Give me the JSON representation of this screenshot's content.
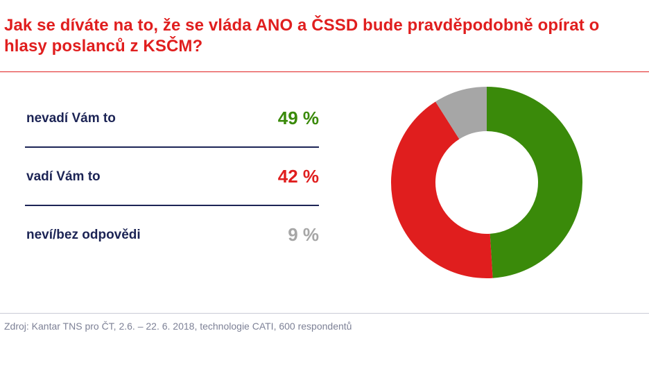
{
  "title": "Jak se díváte na to, že se vláda ANO a ČSSD bude pravděpodobně opírat o hlasy poslanců z KSČM?",
  "source": "Zdroj: Kantar TNS pro ČT, 2.6. – 22. 6. 2018, technologie CATI, 600 respondentů",
  "rows": [
    {
      "label": "nevadí Vám to",
      "value_text": "49 %"
    },
    {
      "label": "vadí Vám to",
      "value_text": "42 %"
    },
    {
      "label": "neví/bez odpovědi",
      "value_text": "9 %"
    }
  ],
  "colors": {
    "green": "#3a8a0a",
    "red": "#e01e1e",
    "gray": "#a6a6a6",
    "navy": "#1c2455"
  },
  "chart_data": {
    "type": "pie",
    "donut": true,
    "categories": [
      "nevadí Vám to",
      "vadí Vám to",
      "neví/bez odpovědi"
    ],
    "values": [
      49,
      42,
      9
    ],
    "colors": [
      "#3a8a0a",
      "#e01e1e",
      "#a6a6a6"
    ],
    "start": "top",
    "direction": "clockwise"
  }
}
